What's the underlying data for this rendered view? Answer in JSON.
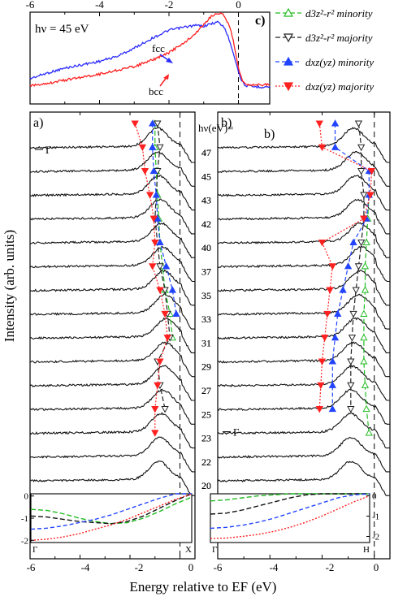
{
  "chart_data": [
    {
      "panel": "c",
      "type": "line",
      "label": "c)",
      "annotation": "hν = 45 eV",
      "xlim": [
        -6.0,
        0.9
      ],
      "x_ticks": [
        "-6",
        "-4",
        "-2",
        "0"
      ],
      "x": [
        -6.0,
        -5.5,
        -5.0,
        -4.5,
        -4.0,
        -3.5,
        -3.0,
        -2.5,
        -2.0,
        -1.5,
        -1.2,
        -1.0,
        -0.8,
        -0.6,
        -0.4,
        -0.2,
        0.0,
        0.1,
        0.2,
        0.4,
        0.6,
        0.9
      ],
      "series": [
        {
          "name": "fcc",
          "color": "#2b2bff",
          "values": [
            0.18,
            0.26,
            0.33,
            0.38,
            0.43,
            0.5,
            0.62,
            0.76,
            0.88,
            0.93,
            0.95,
            0.94,
            0.97,
            1.0,
            0.92,
            0.65,
            0.28,
            0.14,
            0.08,
            0.06,
            0.06,
            0.06
          ]
        },
        {
          "name": "bcc",
          "color": "#ff2020",
          "values": [
            0.05,
            0.08,
            0.12,
            0.16,
            0.2,
            0.25,
            0.3,
            0.38,
            0.48,
            0.63,
            0.75,
            0.85,
            0.95,
            1.0,
            0.97,
            0.75,
            0.3,
            0.12,
            0.07,
            0.06,
            0.06,
            0.06
          ]
        }
      ]
    },
    {
      "panel": "a",
      "type": "line",
      "label": "a)",
      "point_label": "Γ",
      "xlim": [
        -6.0,
        0.6
      ],
      "spectra_hv": [
        "47",
        "45",
        "43",
        "42",
        "40",
        "37",
        "35",
        "33",
        "31",
        "29",
        "27",
        "25",
        "23",
        "22",
        "20"
      ],
      "peak_energy": [
        -0.9,
        -0.9,
        -0.85,
        -0.8,
        -0.75,
        -0.7,
        -0.65,
        -0.6,
        -0.55,
        -0.6,
        -0.65,
        -0.7,
        -0.75,
        -0.8,
        -0.85
      ],
      "markers": {
        "d3z2-r2 minority": [
          -1.0,
          -1.0,
          -0.95,
          -0.9,
          -0.85,
          -0.8,
          -0.7,
          -0.6,
          -0.4,
          -0.3,
          null,
          null,
          null,
          null,
          null
        ],
        "d3z2-r2 majority": [
          -0.9,
          -0.8,
          -0.9,
          null,
          -1.0,
          -0.9,
          -0.8,
          -0.6,
          -0.5,
          -0.4,
          -0.9,
          -0.8,
          -0.6,
          null,
          null
        ],
        "dxz(yz) minority": [
          -1.1,
          -1.1,
          -1.05,
          -0.95,
          -0.9,
          -0.8,
          -0.55,
          -0.3,
          -0.15,
          null,
          null,
          null,
          null,
          null,
          null
        ],
        "dxz(yz) majority": [
          -1.8,
          -1.5,
          -1.4,
          -1.2,
          -1.05,
          -1.0,
          -1.1,
          -0.8,
          -0.6,
          -0.5,
          -0.8,
          -0.9,
          -1.0,
          -1.0,
          null
        ]
      },
      "inset": {
        "xlim": [
          0,
          1
        ],
        "ylim": [
          -2.1,
          0.1
        ],
        "y_ticks": [
          "0",
          "-1",
          "-2"
        ],
        "x_ticks": [
          "Γ",
          "X"
        ],
        "x": [
          0,
          0.1,
          0.2,
          0.3,
          0.4,
          0.5,
          0.6,
          0.7,
          0.8,
          0.9,
          1.0
        ],
        "curves": [
          {
            "color": "#22bb22",
            "dash": "6,3",
            "values": [
              -0.6,
              -0.65,
              -0.8,
              -1.0,
              -1.15,
              -1.25,
              -1.2,
              -1.0,
              -0.7,
              -0.35,
              -0.05
            ]
          },
          {
            "color": "#111111",
            "dash": "6,3",
            "values": [
              -0.9,
              -0.95,
              -1.05,
              -1.15,
              -1.2,
              -1.25,
              -1.15,
              -0.9,
              -0.55,
              -0.2,
              0.1
            ]
          },
          {
            "color": "#2244ff",
            "dash": "5,3",
            "values": [
              -1.5,
              -1.45,
              -1.35,
              -1.2,
              -1.05,
              -0.85,
              -0.6,
              -0.35,
              -0.1,
              0.1,
              0.1
            ]
          },
          {
            "color": "#ff2020",
            "dash": "2,2",
            "values": [
              -2.0,
              -1.95,
              -1.85,
              -1.7,
              -1.5,
              -1.3,
              -1.05,
              -0.75,
              -0.45,
              -0.15,
              0.1
            ]
          }
        ]
      }
    },
    {
      "panel": "b",
      "type": "line",
      "label": "b)",
      "point_label": "Γ",
      "xlim": [
        -6.0,
        0.6
      ],
      "spectra_hv": [
        "47",
        "45",
        "43",
        "42",
        "40",
        "37",
        "35",
        "33",
        "31",
        "29",
        "27",
        "25",
        "23",
        "22",
        "20"
      ],
      "peak_energy": [
        -0.8,
        -0.7,
        -0.7,
        -0.65,
        -0.55,
        -0.5,
        -0.55,
        -0.6,
        -0.7,
        -0.8,
        -0.85,
        -0.9,
        -0.9,
        -0.9,
        -0.9
      ],
      "markers": {
        "d3z2-r2 minority": [
          null,
          null,
          null,
          -0.2,
          -0.25,
          -0.3,
          -0.35,
          -0.35,
          -0.4,
          -0.4,
          -0.4,
          -0.35,
          -0.3,
          -0.2,
          null
        ],
        "d3z2-r2 majority": [
          -0.6,
          -0.5,
          -0.5,
          -0.4,
          -0.4,
          -0.5,
          -0.6,
          -0.7,
          -0.8,
          -0.85,
          -0.9,
          -0.9,
          -0.9,
          null,
          null
        ],
        "dxz(yz) minority": [
          -1.5,
          -1.5,
          -0.2,
          -0.2,
          -0.3,
          -0.8,
          -1.0,
          -1.2,
          -1.4,
          -1.5,
          -1.6,
          -1.6,
          -1.6,
          null,
          null
        ],
        "dxz(yz) majority": [
          -2.1,
          -2.0,
          -0.1,
          -0.15,
          -0.4,
          -2.0,
          -1.6,
          -1.7,
          -1.8,
          -1.9,
          -2.0,
          -2.05,
          -2.1,
          null,
          null
        ]
      },
      "inset": {
        "xlim": [
          0,
          1
        ],
        "ylim": [
          -2.3,
          0.1
        ],
        "y_ticks": [
          "0",
          "-1",
          "-2"
        ],
        "x_ticks": [
          "Γ",
          "H"
        ],
        "x": [
          0,
          0.1,
          0.2,
          0.3,
          0.4,
          0.5,
          0.6,
          0.7,
          0.8,
          0.9,
          1.0
        ],
        "curves": [
          {
            "color": "#22bb22",
            "dash": "6,3",
            "values": [
              -0.25,
              -0.2,
              -0.1,
              0.0,
              0.05,
              0.1,
              0.1,
              0.1,
              0.1,
              0.1,
              0.1
            ]
          },
          {
            "color": "#111111",
            "dash": "6,3",
            "values": [
              -0.9,
              -0.85,
              -0.7,
              -0.5,
              -0.3,
              -0.1,
              0.05,
              0.1,
              0.1,
              0.1,
              0.1
            ]
          },
          {
            "color": "#2244ff",
            "dash": "5,3",
            "values": [
              -1.6,
              -1.55,
              -1.45,
              -1.3,
              -1.1,
              -0.85,
              -0.6,
              -0.35,
              -0.1,
              0.05,
              0.1
            ]
          },
          {
            "color": "#ff2020",
            "dash": "2,2",
            "values": [
              -2.1,
              -2.08,
              -2.0,
              -1.9,
              -1.75,
              -1.55,
              -1.3,
              -1.0,
              -0.65,
              -0.3,
              0.0
            ]
          }
        ]
      }
    }
  ],
  "legend": [
    {
      "label": "d3z²-r² minority",
      "color": "#22bb22",
      "marker": "triangle-up-open",
      "dash": "6,3"
    },
    {
      "label": "d3z²-r² majority",
      "color": "#222222",
      "marker": "triangle-down-open",
      "dash": "6,3"
    },
    {
      "label": "dxz(yz) minority",
      "color": "#2244ff",
      "marker": "triangle-up-filled",
      "dash": "5,3"
    },
    {
      "label": "dxz(yz) majority",
      "color": "#ff2020",
      "marker": "triangle-down-filled",
      "dash": "2,2"
    }
  ],
  "hv_header": "hν(eV)=",
  "x_ticks_bottom": [
    "-6",
    "-4",
    "-2",
    "0",
    "-6",
    "-4",
    "-2",
    "0"
  ],
  "ylabel": "Intensity (arb. units)",
  "xlabel": "Energy relative to EF (eV)"
}
